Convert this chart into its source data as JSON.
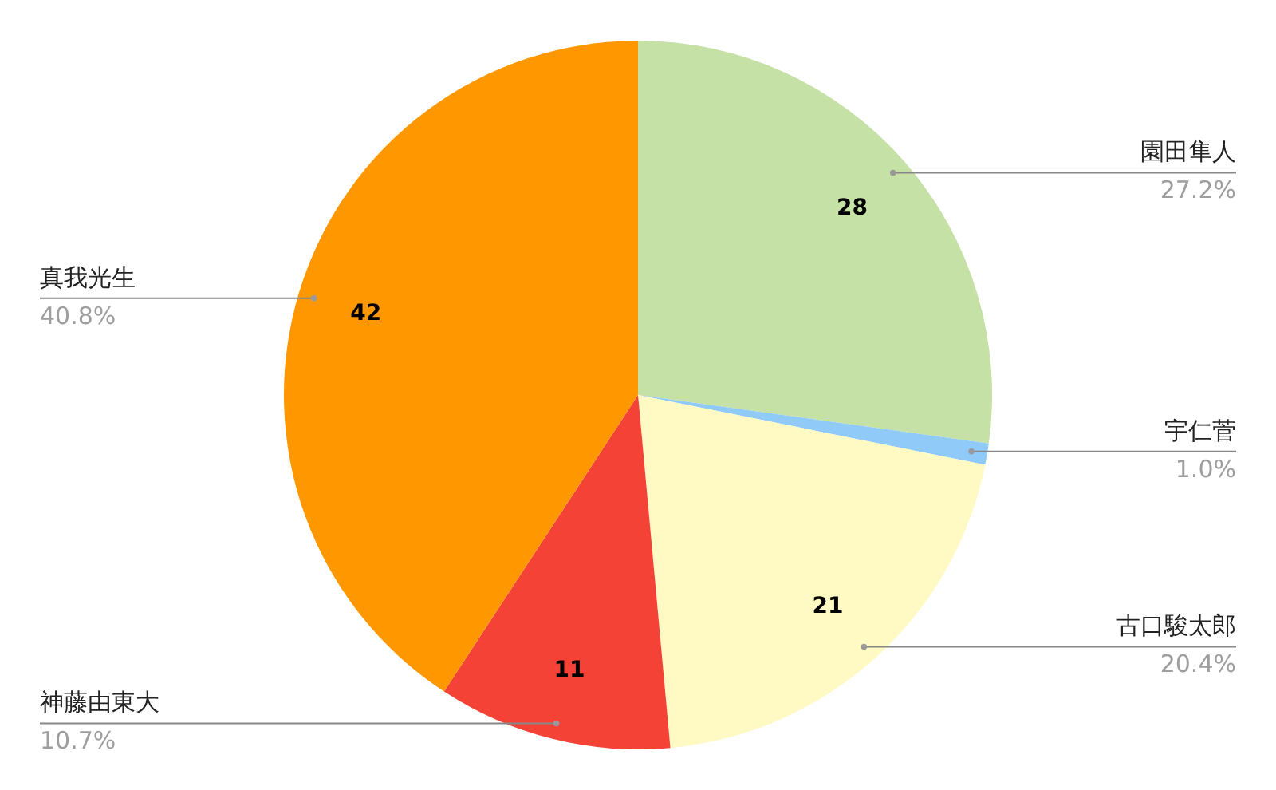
{
  "chart_data": {
    "type": "pie",
    "categories": [
      "園田隼人",
      "宇仁菅",
      "古口駿太郎",
      "神藤由東大",
      "真我光生"
    ],
    "values": [
      28,
      1,
      21,
      11,
      42
    ],
    "colors": [
      "#c5e1a5",
      "#90caf9",
      "#fff9c4",
      "#f44336",
      "#ff9800"
    ],
    "value_labels": [
      "28",
      null,
      "21",
      "11",
      "42"
    ],
    "annotations": [
      "27.2%",
      "1.0%",
      "20.4%",
      "10.7%",
      "40.8%"
    ]
  }
}
